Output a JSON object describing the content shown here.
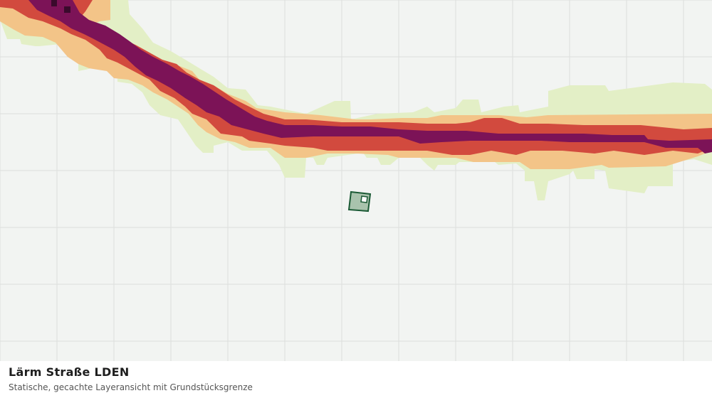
{
  "title": "Lärm Straße LDEN",
  "subtitle": "Statische, gecachte Layeransicht mit Grundstücksgrenze",
  "map": {
    "background_color": "#f2f4f2",
    "grid_color": "#dcdedc",
    "noise_classes": [
      {
        "level": 1,
        "color": "#e3efc6"
      },
      {
        "level": 2,
        "color": "#f3c488"
      },
      {
        "level": 3,
        "color": "#d24a3e"
      },
      {
        "level": 4,
        "color": "#7c1357"
      },
      {
        "level": 5,
        "color": "#3a0a2c"
      }
    ],
    "parcel": {
      "fill": "#a9c3ad",
      "stroke": "#1b5a35"
    }
  }
}
